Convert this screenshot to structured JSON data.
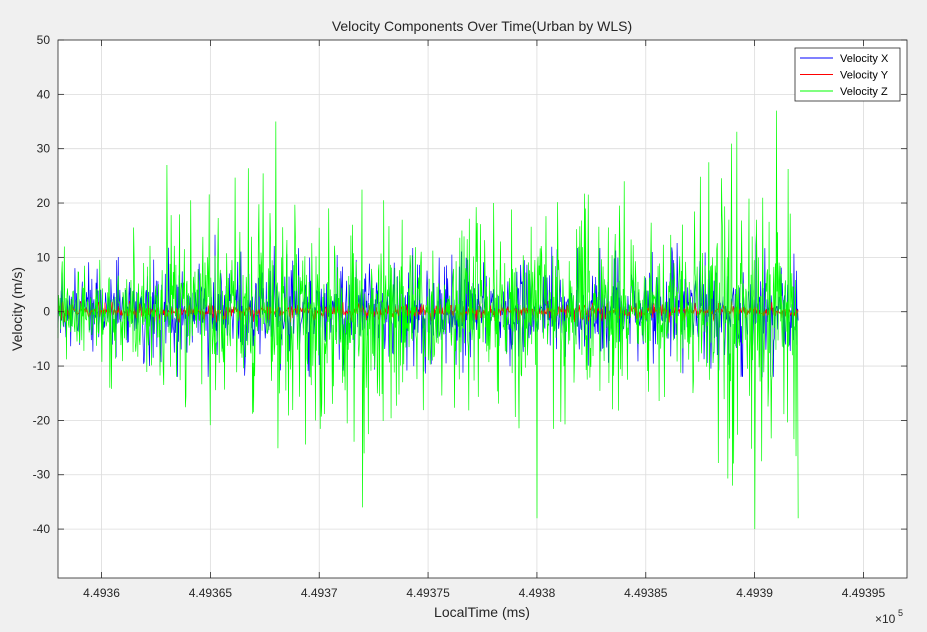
{
  "chart_data": {
    "type": "line",
    "title": "Velocity Components Over Time(Urban by WLS)",
    "xlabel": "LocalTime (ms)",
    "ylabel": "Velocity (m/s)",
    "x_exponent_label": "×10",
    "x_exponent_power": "5",
    "xlim": [
      4.49358,
      4.49397
    ],
    "ylim": [
      -49,
      50
    ],
    "x_ticks": [
      4.4936,
      4.49365,
      4.4937,
      4.49375,
      4.4938,
      4.49385,
      4.4939,
      4.49395
    ],
    "x_tick_labels": [
      "4.4936",
      "4.49365",
      "4.4937",
      "4.49375",
      "4.4938",
      "4.49385",
      "4.4939",
      "4.49395"
    ],
    "y_ticks": [
      50,
      40,
      30,
      20,
      10,
      0,
      -10,
      -20,
      -30,
      -40
    ],
    "y_tick_labels": [
      "50",
      "40",
      "30",
      "20",
      "10",
      "0",
      "-10",
      "-20",
      "-30",
      "-40"
    ],
    "grid": true,
    "legend_position": "top-right",
    "x_data_range": [
      4.49358,
      4.49392
    ],
    "series": [
      {
        "name": "Velocity X",
        "color": "#0000ff",
        "approx_range": [
          -12,
          15
        ],
        "envelope": [
          [
            4.49358,
            8
          ],
          [
            4.4936,
            10
          ],
          [
            4.49363,
            12
          ],
          [
            4.49366,
            15
          ],
          [
            4.4937,
            12
          ],
          [
            4.49375,
            12
          ],
          [
            4.4938,
            12
          ],
          [
            4.49385,
            12
          ],
          [
            4.4939,
            15
          ],
          [
            4.49392,
            15
          ]
        ]
      },
      {
        "name": "Velocity Y",
        "color": "#ff0000",
        "approx_range": [
          -2,
          2
        ],
        "envelope": [
          [
            4.49358,
            2
          ],
          [
            4.49392,
            2
          ]
        ]
      },
      {
        "name": "Velocity Z",
        "color": "#00ff00",
        "approx_range": [
          -40,
          43
        ],
        "peaks": [
          [
            4.493583,
            12
          ],
          [
            4.49363,
            27
          ],
          [
            4.49368,
            35
          ],
          [
            4.49372,
            -36
          ],
          [
            4.49378,
            20
          ],
          [
            4.4938,
            -38
          ],
          [
            4.49384,
            24
          ],
          [
            4.49389,
            -32
          ],
          [
            4.4939,
            43
          ],
          [
            4.4939,
            -40
          ],
          [
            4.49391,
            37
          ],
          [
            4.49392,
            -38
          ]
        ],
        "envelope": [
          [
            4.49358,
            12
          ],
          [
            4.4936,
            14
          ],
          [
            4.49363,
            20
          ],
          [
            4.49366,
            25
          ],
          [
            4.49368,
            30
          ],
          [
            4.4937,
            24
          ],
          [
            4.49372,
            28
          ],
          [
            4.49375,
            22
          ],
          [
            4.49378,
            22
          ],
          [
            4.4938,
            25
          ],
          [
            4.49383,
            22
          ],
          [
            4.49385,
            20
          ],
          [
            4.49388,
            28
          ],
          [
            4.4939,
            38
          ],
          [
            4.49391,
            34
          ],
          [
            4.49392,
            30
          ]
        ]
      }
    ]
  }
}
